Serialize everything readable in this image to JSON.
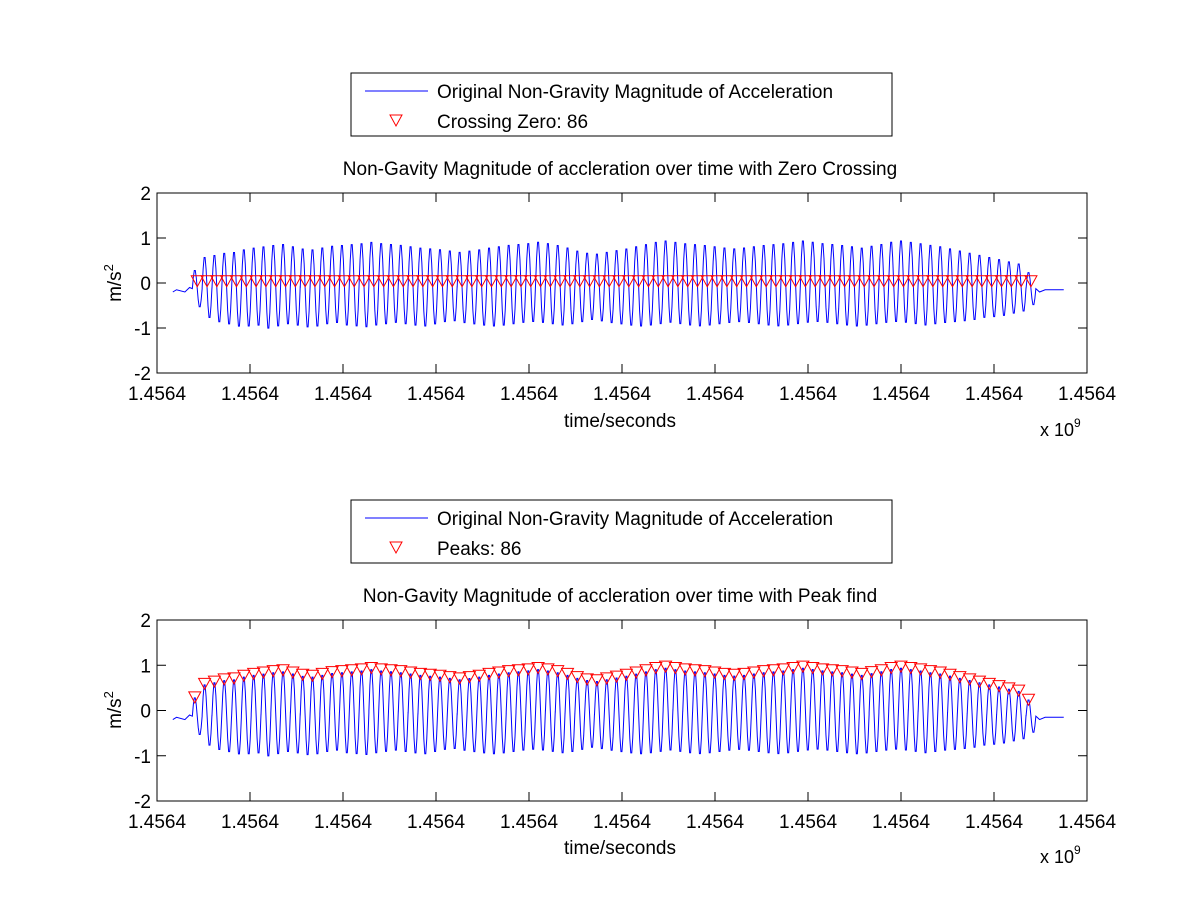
{
  "colors": {
    "signal": "#0000ff",
    "marker": "#ff0000",
    "axis": "#000000",
    "background": "#ffffff"
  },
  "chart_data": [
    {
      "type": "line",
      "title": "Non-Gavity Magnitude of accleration over time with Zero Crossing",
      "xlabel": "time/seconds",
      "ylabel_base": "m/s",
      "ylabel_exp": "2",
      "x_exponent_base": "x 10",
      "x_exponent_power": "9",
      "xticks": [
        "1.4564",
        "1.4564",
        "1.4564",
        "1.4564",
        "1.4564",
        "1.4564",
        "1.4564",
        "1.4564",
        "1.4564",
        "1.4564",
        "1.4564"
      ],
      "yticks": [
        -2,
        -1,
        0,
        1,
        2
      ],
      "ylim": [
        -2,
        2
      ],
      "grid": false,
      "legend_placement": "above",
      "signal": {
        "name": "Original Non-Gravity Magnitude of Acceleration",
        "cycles": 86,
        "start_level": -0.2,
        "end_level": -0.15,
        "peak_values": [
          0.3,
          0.6,
          0.65,
          0.7,
          0.72,
          0.78,
          0.82,
          0.85,
          0.88,
          0.9,
          0.85,
          0.8,
          0.78,
          0.82,
          0.86,
          0.88,
          0.9,
          0.92,
          0.95,
          0.92,
          0.9,
          0.88,
          0.85,
          0.82,
          0.8,
          0.78,
          0.75,
          0.72,
          0.75,
          0.78,
          0.82,
          0.85,
          0.88,
          0.9,
          0.92,
          0.95,
          0.92,
          0.88,
          0.82,
          0.75,
          0.7,
          0.68,
          0.72,
          0.76,
          0.8,
          0.85,
          0.9,
          0.95,
          0.98,
          0.95,
          0.92,
          0.9,
          0.88,
          0.85,
          0.82,
          0.8,
          0.82,
          0.85,
          0.88,
          0.9,
          0.92,
          0.95,
          0.98,
          0.95,
          0.92,
          0.9,
          0.88,
          0.85,
          0.82,
          0.86,
          0.9,
          0.95,
          0.98,
          0.95,
          0.92,
          0.88,
          0.85,
          0.8,
          0.75,
          0.7,
          0.65,
          0.6,
          0.55,
          0.5,
          0.45,
          0.25
        ],
        "trough_values": [
          -0.55,
          -0.8,
          -0.9,
          -0.95,
          -1.0,
          -1.0,
          -0.98,
          -1.05,
          -1.0,
          -0.95,
          -0.98,
          -1.02,
          -1.0,
          -0.95,
          -0.92,
          -0.98,
          -1.0,
          -1.02,
          -0.98,
          -0.95,
          -0.92,
          -0.95,
          -0.98,
          -1.0,
          -0.95,
          -0.9,
          -0.88,
          -0.92,
          -0.95,
          -0.98,
          -1.0,
          -0.98,
          -0.95,
          -0.92,
          -0.9,
          -0.92,
          -0.95,
          -0.98,
          -0.95,
          -0.9,
          -0.85,
          -0.88,
          -0.92,
          -0.95,
          -0.98,
          -1.0,
          -0.98,
          -0.95,
          -0.92,
          -0.95,
          -0.98,
          -1.0,
          -0.98,
          -0.95,
          -0.92,
          -0.9,
          -0.92,
          -0.95,
          -0.98,
          -1.0,
          -0.98,
          -0.95,
          -0.92,
          -0.9,
          -0.92,
          -0.95,
          -0.98,
          -1.0,
          -0.98,
          -0.95,
          -0.92,
          -0.9,
          -0.92,
          -0.95,
          -0.98,
          -0.95,
          -0.92,
          -0.9,
          -0.88,
          -0.85,
          -0.8,
          -0.78,
          -0.75,
          -0.7,
          -0.65,
          -0.5
        ]
      },
      "markers": {
        "label": "Crossing Zero: 86",
        "count": 86,
        "value": 0.05
      }
    },
    {
      "type": "line",
      "title": "Non-Gavity Magnitude of accleration over time with Peak find",
      "xlabel": "time/seconds",
      "ylabel_base": "m/s",
      "ylabel_exp": "2",
      "x_exponent_base": "x 10",
      "x_exponent_power": "9",
      "xticks": [
        "1.4564",
        "1.4564",
        "1.4564",
        "1.4564",
        "1.4564",
        "1.4564",
        "1.4564",
        "1.4564",
        "1.4564",
        "1.4564",
        "1.4564"
      ],
      "yticks": [
        -2,
        -1,
        0,
        1,
        2
      ],
      "ylim": [
        -2,
        2
      ],
      "grid": false,
      "legend_placement": "above",
      "signal": {
        "name": "Original Non-Gravity Magnitude of Acceleration",
        "same_as_first_chart": true
      },
      "markers": {
        "label": "Peaks: 86",
        "count": 86,
        "at": "signal peaks"
      }
    }
  ]
}
